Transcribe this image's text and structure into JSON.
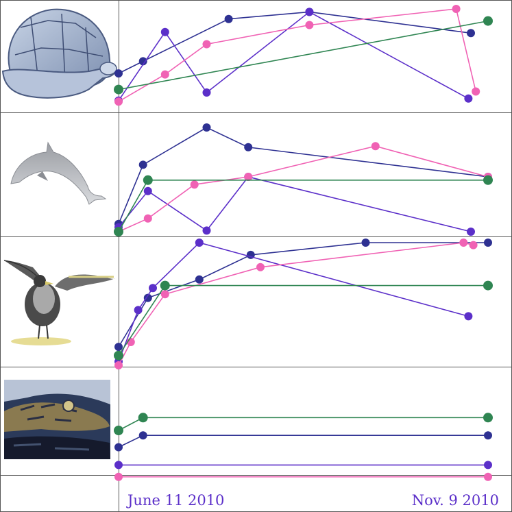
{
  "chart_data": {
    "type": "line",
    "x_range": [
      "2010-06-11",
      "2010-11-09"
    ],
    "x_tick_labels": [
      "June 11 2010",
      "Nov. 9 2010"
    ],
    "grid": false,
    "legend": "none",
    "colors": {
      "navy": "#2e3192",
      "violet": "#5b2fc9",
      "pink": "#f062b4",
      "green": "#2f8552",
      "axis_label": "#5b2fc9"
    },
    "panels": [
      {
        "icon": "turtle-icon",
        "series": [
          {
            "color": "navy",
            "points": [
              [
                "2010-06-11",
                0.36
              ],
              [
                "2010-06-21",
                0.48
              ],
              [
                "2010-07-26",
                0.9
              ],
              [
                "2010-08-28",
                0.97
              ],
              [
                "2010-11-02",
                0.76
              ]
            ]
          },
          {
            "color": "violet",
            "points": [
              [
                "2010-06-11",
                0.09
              ],
              [
                "2010-06-30",
                0.77
              ],
              [
                "2010-07-17",
                0.17
              ],
              [
                "2010-08-28",
                0.97
              ],
              [
                "2010-11-01",
                0.11
              ]
            ]
          },
          {
            "color": "pink",
            "points": [
              [
                "2010-06-11",
                0.08
              ],
              [
                "2010-06-30",
                0.35
              ],
              [
                "2010-07-17",
                0.65
              ],
              [
                "2010-08-28",
                0.84
              ],
              [
                "2010-10-27",
                1.0
              ],
              [
                "2010-11-04",
                0.18
              ]
            ]
          },
          {
            "color": "green",
            "points": [
              [
                "2010-06-11",
                0.2
              ],
              [
                "2010-11-09",
                0.88
              ]
            ]
          }
        ]
      },
      {
        "icon": "dolphin-icon",
        "series": [
          {
            "color": "navy",
            "points": [
              [
                "2010-06-11",
                0.12
              ],
              [
                "2010-06-21",
                0.66
              ],
              [
                "2010-07-17",
                1.0
              ],
              [
                "2010-08-03",
                0.82
              ],
              [
                "2010-11-09",
                0.55
              ]
            ]
          },
          {
            "color": "violet",
            "points": [
              [
                "2010-06-11",
                0.09
              ],
              [
                "2010-06-23",
                0.42
              ],
              [
                "2010-07-17",
                0.06
              ],
              [
                "2010-08-03",
                0.55
              ],
              [
                "2010-11-02",
                0.05
              ]
            ]
          },
          {
            "color": "pink",
            "points": [
              [
                "2010-06-11",
                0.05
              ],
              [
                "2010-06-23",
                0.17
              ],
              [
                "2010-07-12",
                0.48
              ],
              [
                "2010-08-03",
                0.55
              ],
              [
                "2010-09-24",
                0.83
              ],
              [
                "2010-11-09",
                0.55
              ]
            ]
          },
          {
            "color": "green",
            "points": [
              [
                "2010-06-11",
                0.05
              ],
              [
                "2010-06-23",
                0.52
              ],
              [
                "2010-11-09",
                0.52
              ]
            ]
          }
        ]
      },
      {
        "icon": "bird-icon",
        "series": [
          {
            "color": "navy",
            "points": [
              [
                "2010-06-11",
                0.15
              ],
              [
                "2010-06-23",
                0.55
              ],
              [
                "2010-07-14",
                0.7
              ],
              [
                "2010-08-04",
                0.9
              ],
              [
                "2010-09-20",
                1.0
              ],
              [
                "2010-11-09",
                1.0
              ]
            ]
          },
          {
            "color": "violet",
            "points": [
              [
                "2010-06-11",
                0.03
              ],
              [
                "2010-06-19",
                0.45
              ],
              [
                "2010-06-25",
                0.63
              ],
              [
                "2010-07-14",
                1.0
              ],
              [
                "2010-11-01",
                0.4
              ]
            ]
          },
          {
            "color": "pink",
            "points": [
              [
                "2010-06-11",
                0.0
              ],
              [
                "2010-06-16",
                0.19
              ],
              [
                "2010-06-30",
                0.58
              ],
              [
                "2010-08-08",
                0.8
              ],
              [
                "2010-10-30",
                1.0
              ],
              [
                "2010-11-03",
                0.98
              ]
            ]
          },
          {
            "color": "green",
            "points": [
              [
                "2010-06-11",
                0.08
              ],
              [
                "2010-06-30",
                0.65
              ],
              [
                "2010-11-09",
                0.65
              ]
            ]
          }
        ]
      },
      {
        "icon": "alligator-icon",
        "series": [
          {
            "color": "green",
            "points": [
              [
                "2010-06-11",
                0.5
              ],
              [
                "2010-06-21",
                0.63
              ],
              [
                "2010-11-09",
                0.63
              ]
            ]
          },
          {
            "color": "navy",
            "points": [
              [
                "2010-06-11",
                0.33
              ],
              [
                "2010-06-21",
                0.45
              ],
              [
                "2010-11-09",
                0.45
              ]
            ]
          },
          {
            "color": "violet",
            "points": [
              [
                "2010-06-11",
                0.15
              ],
              [
                "2010-11-09",
                0.15
              ]
            ]
          },
          {
            "color": "pink",
            "points": [
              [
                "2010-06-11",
                0.03
              ],
              [
                "2010-11-09",
                0.03
              ]
            ]
          }
        ]
      }
    ]
  }
}
